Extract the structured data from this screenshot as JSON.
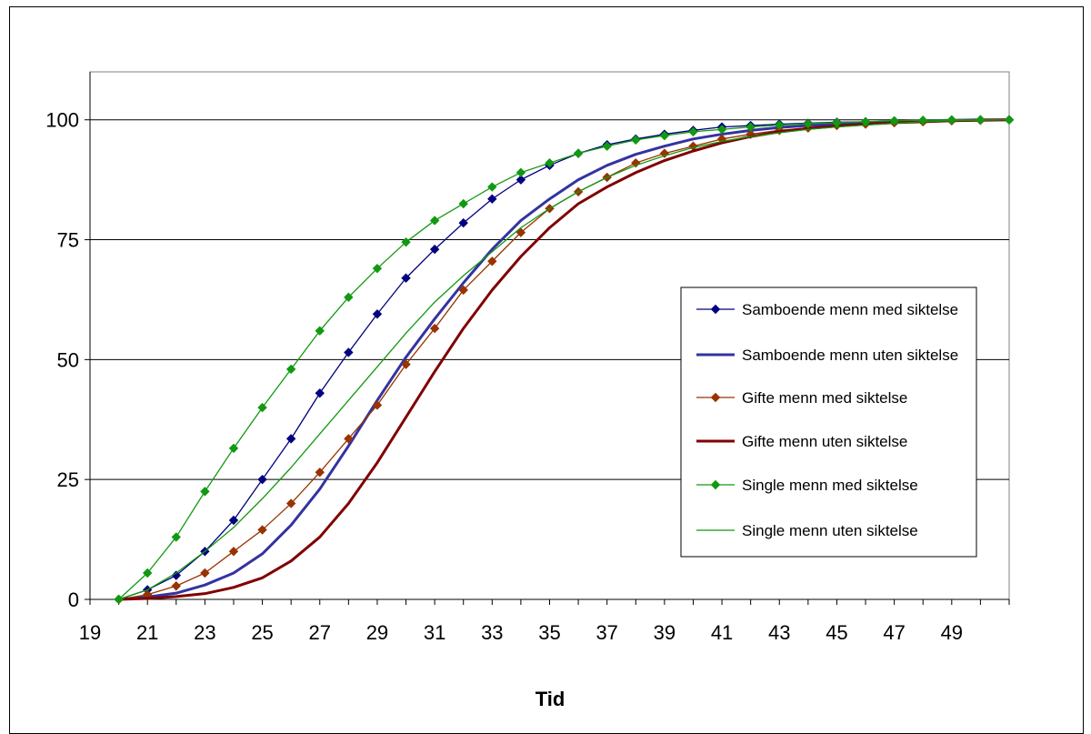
{
  "chart_data": {
    "type": "line",
    "title": "",
    "xlabel": "Tid",
    "ylabel": "",
    "xlim": [
      19,
      51
    ],
    "ylim": [
      0,
      110
    ],
    "x_ticks": [
      19,
      21,
      23,
      25,
      27,
      29,
      31,
      33,
      35,
      37,
      39,
      41,
      43,
      45,
      47,
      49
    ],
    "y_ticks": [
      0,
      25,
      50,
      75,
      100
    ],
    "grid": "horizontal",
    "legend_position": "right",
    "x": [
      20,
      21,
      22,
      23,
      24,
      25,
      26,
      27,
      28,
      29,
      30,
      31,
      32,
      33,
      34,
      35,
      36,
      37,
      38,
      39,
      40,
      41,
      42,
      43,
      44,
      45,
      46,
      47,
      48,
      49,
      50,
      51
    ],
    "series": [
      {
        "name": "Samboende menn med siktelse",
        "color": "#000080",
        "marker": "diamond",
        "line_width": 1.3,
        "values": [
          0,
          2,
          5,
          10,
          16.5,
          25,
          33.5,
          43,
          51.5,
          59.5,
          67,
          73,
          78.5,
          83.5,
          87.5,
          90.5,
          93,
          94.8,
          96,
          97,
          97.8,
          98.5,
          98.8,
          99.1,
          99.3,
          99.5,
          99.6,
          99.7,
          99.8,
          99.9,
          100,
          100
        ]
      },
      {
        "name": "Samboende menn uten siktelse",
        "color": "#3333a0",
        "marker": "none",
        "line_width": 3,
        "values": [
          0,
          0.5,
          1.3,
          3,
          5.5,
          9.5,
          15.5,
          23,
          32,
          41.5,
          50.5,
          58.5,
          66,
          73,
          79,
          83.5,
          87.5,
          90.5,
          92.8,
          94.5,
          96,
          97,
          97.8,
          98.4,
          98.8,
          99.1,
          99.4,
          99.6,
          99.8,
          99.9,
          100,
          100
        ]
      },
      {
        "name": "Gifte menn med siktelse",
        "color": "#993300",
        "marker": "diamond",
        "line_width": 1.3,
        "values": [
          0,
          1,
          2.8,
          5.5,
          10,
          14.5,
          20,
          26.5,
          33.5,
          40.5,
          49,
          56.5,
          64.5,
          70.5,
          76.5,
          81.5,
          85,
          88,
          91,
          93,
          94.5,
          96,
          97,
          97.8,
          98.3,
          98.8,
          99.1,
          99.4,
          99.6,
          99.8,
          99.9,
          100
        ]
      },
      {
        "name": "Gifte menn uten siktelse",
        "color": "#800000",
        "marker": "none",
        "line_width": 3,
        "values": [
          0,
          0.2,
          0.6,
          1.2,
          2.5,
          4.5,
          8,
          13,
          20,
          28.5,
          38,
          47.5,
          56.5,
          64.5,
          71.5,
          77.5,
          82.5,
          86,
          89,
          91.5,
          93.5,
          95.2,
          96.5,
          97.5,
          98.2,
          98.7,
          99.1,
          99.4,
          99.6,
          99.8,
          99.9,
          100
        ]
      },
      {
        "name": "Single menn med siktelse",
        "color": "#119911",
        "marker": "diamond",
        "line_width": 1.3,
        "values": [
          0,
          5.5,
          13,
          22.5,
          31.5,
          40,
          48,
          56,
          63,
          69,
          74.5,
          79,
          82.5,
          86,
          89,
          91,
          93,
          94.5,
          95.8,
          96.7,
          97.5,
          98,
          98.5,
          98.9,
          99.2,
          99.4,
          99.6,
          99.8,
          99.9,
          100,
          100,
          100
        ]
      },
      {
        "name": "Single menn uten siktelse",
        "color": "#119911",
        "marker": "none",
        "line_width": 1.3,
        "values": [
          0,
          2,
          5.5,
          10,
          15,
          21,
          27.5,
          34.5,
          41.5,
          48.5,
          55.5,
          62,
          67.5,
          72.5,
          77.5,
          81.5,
          85,
          88,
          90.5,
          92.5,
          94.2,
          95.5,
          96.5,
          97.3,
          98,
          98.5,
          98.9,
          99.3,
          99.6,
          99.8,
          99.9,
          100
        ]
      }
    ]
  }
}
